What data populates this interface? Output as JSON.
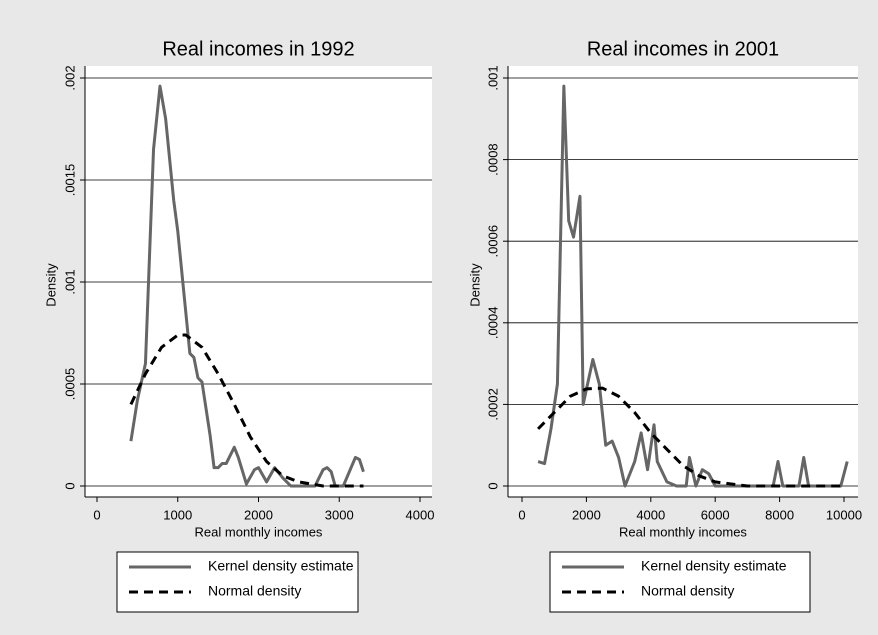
{
  "chart_data": [
    {
      "type": "line",
      "title": "Real incomes in 1992",
      "x_label": "Real monthly incomes",
      "y_label": "Density",
      "xlim": [
        0,
        4000
      ],
      "xticks": [
        0,
        1000,
        2000,
        3000,
        4000
      ],
      "ylim": [
        0,
        0.002
      ],
      "yticks": [
        0,
        {
          "value": 0.0005,
          "label": ".0005"
        },
        {
          "value": 0.001,
          "label": ".001"
        },
        {
          "value": 0.0015,
          "label": ".0015"
        },
        {
          "value": 0.002,
          "label": ".002"
        }
      ],
      "grid": true,
      "legend": "bottom",
      "series": [
        {
          "name": "Kernel density estimate",
          "color": "#666666",
          "dash": false,
          "x": [
            420,
            500,
            600,
            700,
            780,
            850,
            950,
            1000,
            1100,
            1150,
            1200,
            1250,
            1300,
            1400,
            1450,
            1500,
            1550,
            1600,
            1700,
            1750,
            1850,
            1950,
            2000,
            2100,
            2200,
            2300,
            2400,
            2700,
            2800,
            2850,
            2900,
            2950,
            3050,
            3200,
            3250,
            3300
          ],
          "values": [
            0.00022,
            0.00042,
            0.0006,
            0.00165,
            0.00196,
            0.0018,
            0.0014,
            0.00125,
            0.00085,
            0.00065,
            0.00063,
            0.00053,
            0.00051,
            0.00025,
            9e-05,
            9e-05,
            0.00011,
            0.00011,
            0.00019,
            0.00014,
            1e-05,
            8e-05,
            9e-05,
            2e-05,
            9e-05,
            4e-05,
            0,
            0,
            8e-05,
            9e-05,
            7e-05,
            0,
            0,
            0.00014,
            0.00013,
            7e-05
          ]
        },
        {
          "name": "Normal density",
          "color": "#000000",
          "dash": true,
          "x": [
            420,
            600,
            800,
            1000,
            1100,
            1300,
            1500,
            1700,
            1900,
            2100,
            2300,
            2500,
            2800,
            3300
          ],
          "values": [
            0.0004,
            0.00055,
            0.00068,
            0.00074,
            0.00074,
            0.00068,
            0.00055,
            0.0004,
            0.00024,
            0.00012,
            5e-05,
            2e-05,
            0,
            0
          ]
        }
      ]
    },
    {
      "type": "line",
      "title": "Real incomes in 2001",
      "x_label": "Real monthly incomes",
      "y_label": "Density",
      "xlim": [
        0,
        10000
      ],
      "xticks": [
        0,
        2000,
        4000,
        6000,
        8000,
        10000
      ],
      "ylim": [
        0,
        0.001
      ],
      "yticks": [
        0,
        {
          "value": 0.0002,
          "label": ".0002"
        },
        {
          "value": 0.0004,
          "label": ".0004"
        },
        {
          "value": 0.0006,
          "label": ".0006"
        },
        {
          "value": 0.0008,
          "label": ".0008"
        },
        {
          "value": 0.001,
          "label": ".001"
        }
      ],
      "grid": true,
      "legend": "bottom",
      "series": [
        {
          "name": "Kernel density estimate",
          "color": "#666666",
          "dash": false,
          "x": [
            500,
            700,
            900,
            1100,
            1300,
            1450,
            1600,
            1800,
            1900,
            2200,
            2400,
            2600,
            2800,
            3000,
            3200,
            3500,
            3700,
            3900,
            4100,
            4200,
            4500,
            4800,
            5100,
            5200,
            5400,
            5600,
            5800,
            6000,
            7800,
            7950,
            8100,
            8600,
            8750,
            8900,
            9900,
            10100
          ],
          "values": [
            6e-05,
            5.5e-05,
            0.00014,
            0.00025,
            0.00098,
            0.00065,
            0.00061,
            0.00071,
            0.0002,
            0.00031,
            0.00025,
            0.0001,
            0.00011,
            7e-05,
            0,
            6e-05,
            0.00013,
            4e-05,
            0.00015,
            6e-05,
            1e-05,
            0,
            0,
            7e-05,
            0,
            4e-05,
            3e-05,
            0,
            0,
            6e-05,
            0,
            0,
            7e-05,
            0,
            0,
            6e-05
          ]
        },
        {
          "name": "Normal density",
          "color": "#000000",
          "dash": true,
          "x": [
            500,
            1000,
            1500,
            2000,
            2500,
            3000,
            3500,
            4000,
            4500,
            5000,
            5500,
            6000,
            7000,
            10000
          ],
          "values": [
            0.00014,
            0.00018,
            0.00022,
            0.000238,
            0.00024,
            0.00022,
            0.00018,
            0.00013,
            9e-05,
            5e-05,
            2.5e-05,
            1e-05,
            0,
            0
          ]
        }
      ]
    }
  ]
}
